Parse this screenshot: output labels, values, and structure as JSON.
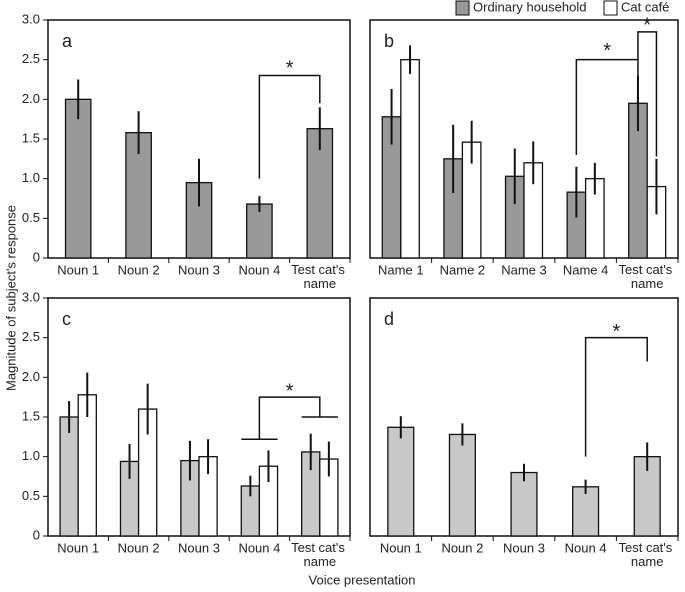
{
  "ylabel": "Magnitude of subject's response",
  "xlabel": "Voice presentation",
  "chart_data": [
    {
      "type": "bar",
      "label": "a",
      "categories": [
        "Noun 1",
        "Noun 2",
        "Noun 3",
        "Noun 4",
        "Test cat's name"
      ],
      "series": [
        {
          "color": "#999999",
          "values": [
            2.0,
            1.58,
            0.95,
            0.68,
            1.63
          ],
          "errors": [
            0.25,
            0.27,
            0.3,
            0.1,
            0.27
          ]
        }
      ],
      "ylim": [
        0,
        3
      ],
      "yticks": [
        0,
        {
          "value": 0.5,
          "label": "0.5"
        },
        {
          "value": 1,
          "label": "1.0"
        },
        {
          "value": 1.5,
          "label": "1.5"
        },
        {
          "value": 2,
          "label": "2.0"
        },
        {
          "value": 2.5,
          "label": "2.5"
        },
        {
          "value": 3,
          "label": "3.0"
        }
      ],
      "annotations": [
        "*"
      ]
    },
    {
      "type": "bar",
      "label": "b",
      "categories": [
        "Name 1",
        "Name 2",
        "Name 3",
        "Name 4",
        "Test cat's name"
      ],
      "series": [
        {
          "name": "Ordinary household",
          "color": "#999999",
          "values": [
            1.78,
            1.25,
            1.03,
            0.83,
            1.95
          ],
          "errors": [
            0.35,
            0.43,
            0.35,
            0.32,
            0.35
          ]
        },
        {
          "name": "Cat café",
          "color": "#ffffff",
          "values": [
            2.5,
            1.46,
            1.2,
            1.0,
            0.9
          ],
          "errors": [
            0.18,
            0.27,
            0.27,
            0.2,
            0.35
          ]
        }
      ],
      "ylim": [
        0,
        3
      ],
      "annotations": [
        "*",
        "*"
      ]
    },
    {
      "type": "bar",
      "label": "c",
      "categories": [
        "Noun 1",
        "Noun 2",
        "Noun 3",
        "Noun 4",
        "Test cat's name"
      ],
      "series": [
        {
          "color": "#c8c8c8",
          "values": [
            1.5,
            0.94,
            0.95,
            0.63,
            1.06
          ],
          "errors": [
            0.2,
            0.22,
            0.25,
            0.13,
            0.23
          ]
        },
        {
          "color": "#ffffff",
          "values": [
            1.78,
            1.6,
            1.0,
            0.88,
            0.97
          ],
          "errors": [
            0.28,
            0.32,
            0.22,
            0.2,
            0.22
          ]
        }
      ],
      "ylim": [
        0,
        3
      ],
      "yticks": [
        0,
        {
          "value": 0.5,
          "label": "0.5"
        },
        {
          "value": 1,
          "label": "1.0"
        },
        {
          "value": 1.5,
          "label": "1.5"
        },
        {
          "value": 2,
          "label": "2.0"
        },
        {
          "value": 2.5,
          "label": "2.5"
        },
        {
          "value": 3,
          "label": "3.0"
        }
      ],
      "annotations": [
        "*"
      ]
    },
    {
      "type": "bar",
      "label": "d",
      "categories": [
        "Noun 1",
        "Noun 2",
        "Noun 3",
        "Noun 4",
        "Test cat's name"
      ],
      "series": [
        {
          "color": "#c8c8c8",
          "values": [
            1.37,
            1.28,
            0.8,
            0.62,
            1.0
          ],
          "errors": [
            0.14,
            0.14,
            0.11,
            0.09,
            0.18
          ]
        }
      ],
      "ylim": [
        0,
        3
      ],
      "annotations": [
        "*"
      ]
    }
  ]
}
